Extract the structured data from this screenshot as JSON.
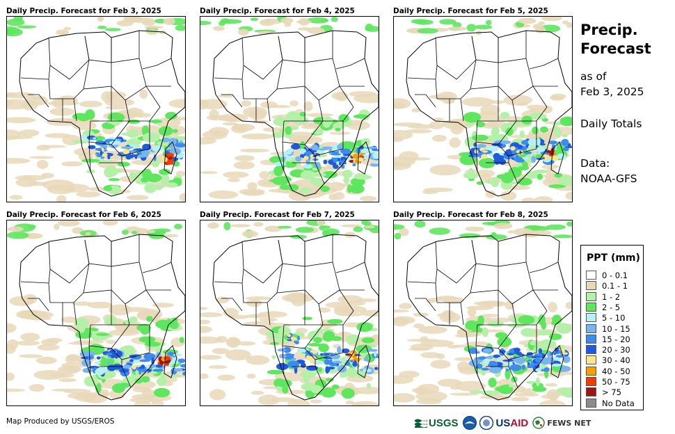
{
  "panels": [
    {
      "title": "Daily Precip. Forecast for Feb 3, 2025"
    },
    {
      "title": "Daily Precip. Forecast for Feb 4, 2025"
    },
    {
      "title": "Daily Precip. Forecast for Feb 5, 2025"
    },
    {
      "title": "Daily Precip. Forecast for Feb 6, 2025"
    },
    {
      "title": "Daily Precip. Forecast for Feb 7, 2025"
    },
    {
      "title": "Daily Precip. Forecast for Feb 8, 2025"
    }
  ],
  "side": {
    "title_line1": "Precip.",
    "title_line2": "Forecast",
    "asof_line1": "as of",
    "asof_line2": "Feb 3, 2025",
    "totals": "Daily Totals",
    "data_label": "Data:",
    "data_source": "NOAA-GFS"
  },
  "legend": {
    "title": "PPT (mm)",
    "items": [
      {
        "label": "0 - 0.1",
        "color": "#ffffff"
      },
      {
        "label": "0.1 - 1",
        "color": "#e8d8b8"
      },
      {
        "label": "1 - 2",
        "color": "#b4f0a8"
      },
      {
        "label": "2 - 5",
        "color": "#5ee65e"
      },
      {
        "label": "5 - 10",
        "color": "#b4f0f5"
      },
      {
        "label": "10 - 15",
        "color": "#78b4f0"
      },
      {
        "label": "15 - 20",
        "color": "#3c8cf0"
      },
      {
        "label": "20 - 30",
        "color": "#1e5adc"
      },
      {
        "label": "30 - 40",
        "color": "#fae68c"
      },
      {
        "label": "40 - 50",
        "color": "#f5a000"
      },
      {
        "label": "50 - 75",
        "color": "#f03c00"
      },
      {
        "label": "> 75",
        "color": "#a01414"
      },
      {
        "label": "No Data",
        "color": "#8c8c8c"
      }
    ]
  },
  "footer": {
    "credit": "Map Produced by USGS/EROS",
    "logo_usgs": "USGS",
    "logo_usaid_a": "US",
    "logo_usaid_b": "AID",
    "logo_fews": "FEWS NET"
  }
}
